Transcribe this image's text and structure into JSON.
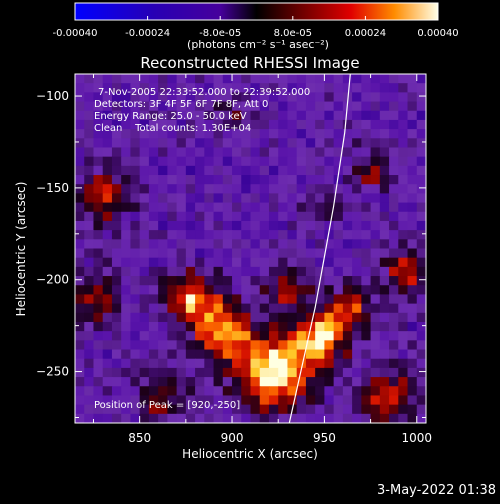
{
  "chart_data": {
    "type": "heatmap",
    "title": "Reconstructed RHESSI Image",
    "xlabel": "Heliocentric X (arcsec)",
    "ylabel": "Heliocentric Y (arcsec)",
    "xlim": [
      815,
      1005
    ],
    "ylim": [
      -278,
      -88
    ],
    "x_ticks": [
      850,
      900,
      950,
      1000
    ],
    "y_ticks": [
      -100,
      -150,
      -200,
      -250
    ],
    "colorbar": {
      "range": [
        -0.0004,
        0.0004
      ],
      "tick_values": [
        -0.0004,
        -0.00024,
        -8e-05,
        8e-05,
        0.00024,
        0.0004
      ],
      "tick_labels": [
        "-0.00040",
        "-0.00024",
        "-8.0e-05",
        "8.0e-05",
        "0.00024",
        "0.00040"
      ],
      "unit_label": "(photons cm⁻² s⁻¹ asec⁻²)"
    },
    "annotations": [
      "7-Nov-2005 22:33:52.000 to 22:39:52.000",
      "Detectors: 3F 4F 5F 6F 7F 8F, Att 0",
      "Energy Range: 25.0 - 50.0 keV",
      "Clean    Total counts: 1.30E+04"
    ],
    "peak_label": "Position of Peak = [920,-250]",
    "peak": [
      920,
      -250
    ],
    "hotspots": [
      {
        "x": 922,
        "y": -250,
        "amp": 1.0,
        "sigma": 14
      },
      {
        "x": 948,
        "y": -232,
        "amp": 0.85,
        "sigma": 10
      },
      {
        "x": 895,
        "y": -228,
        "amp": 0.8,
        "sigma": 11
      },
      {
        "x": 878,
        "y": -210,
        "amp": 0.75,
        "sigma": 10
      },
      {
        "x": 965,
        "y": -215,
        "amp": 0.55,
        "sigma": 9
      },
      {
        "x": 985,
        "y": -265,
        "amp": 0.5,
        "sigma": 12
      },
      {
        "x": 930,
        "y": -205,
        "amp": 0.45,
        "sigma": 9
      },
      {
        "x": 830,
        "y": -155,
        "amp": 0.55,
        "sigma": 10
      },
      {
        "x": 825,
        "y": -210,
        "amp": 0.5,
        "sigma": 10
      },
      {
        "x": 995,
        "y": -195,
        "amp": 0.55,
        "sigma": 9
      },
      {
        "x": 975,
        "y": -140,
        "amp": 0.4,
        "sigma": 8
      },
      {
        "x": 900,
        "y": -110,
        "amp": 0.3,
        "sigma": 8
      },
      {
        "x": 950,
        "y": -160,
        "amp": 0.35,
        "sigma": 7
      },
      {
        "x": 862,
        "y": -265,
        "amp": 0.45,
        "sigma": 10
      }
    ],
    "limb_curve": [
      [
        931,
        -278
      ],
      [
        945,
        -215
      ],
      [
        955,
        -160
      ],
      [
        961,
        -120
      ],
      [
        964,
        -88
      ]
    ]
  },
  "footer": {
    "timestamp": "3-May-2022 01:38"
  }
}
